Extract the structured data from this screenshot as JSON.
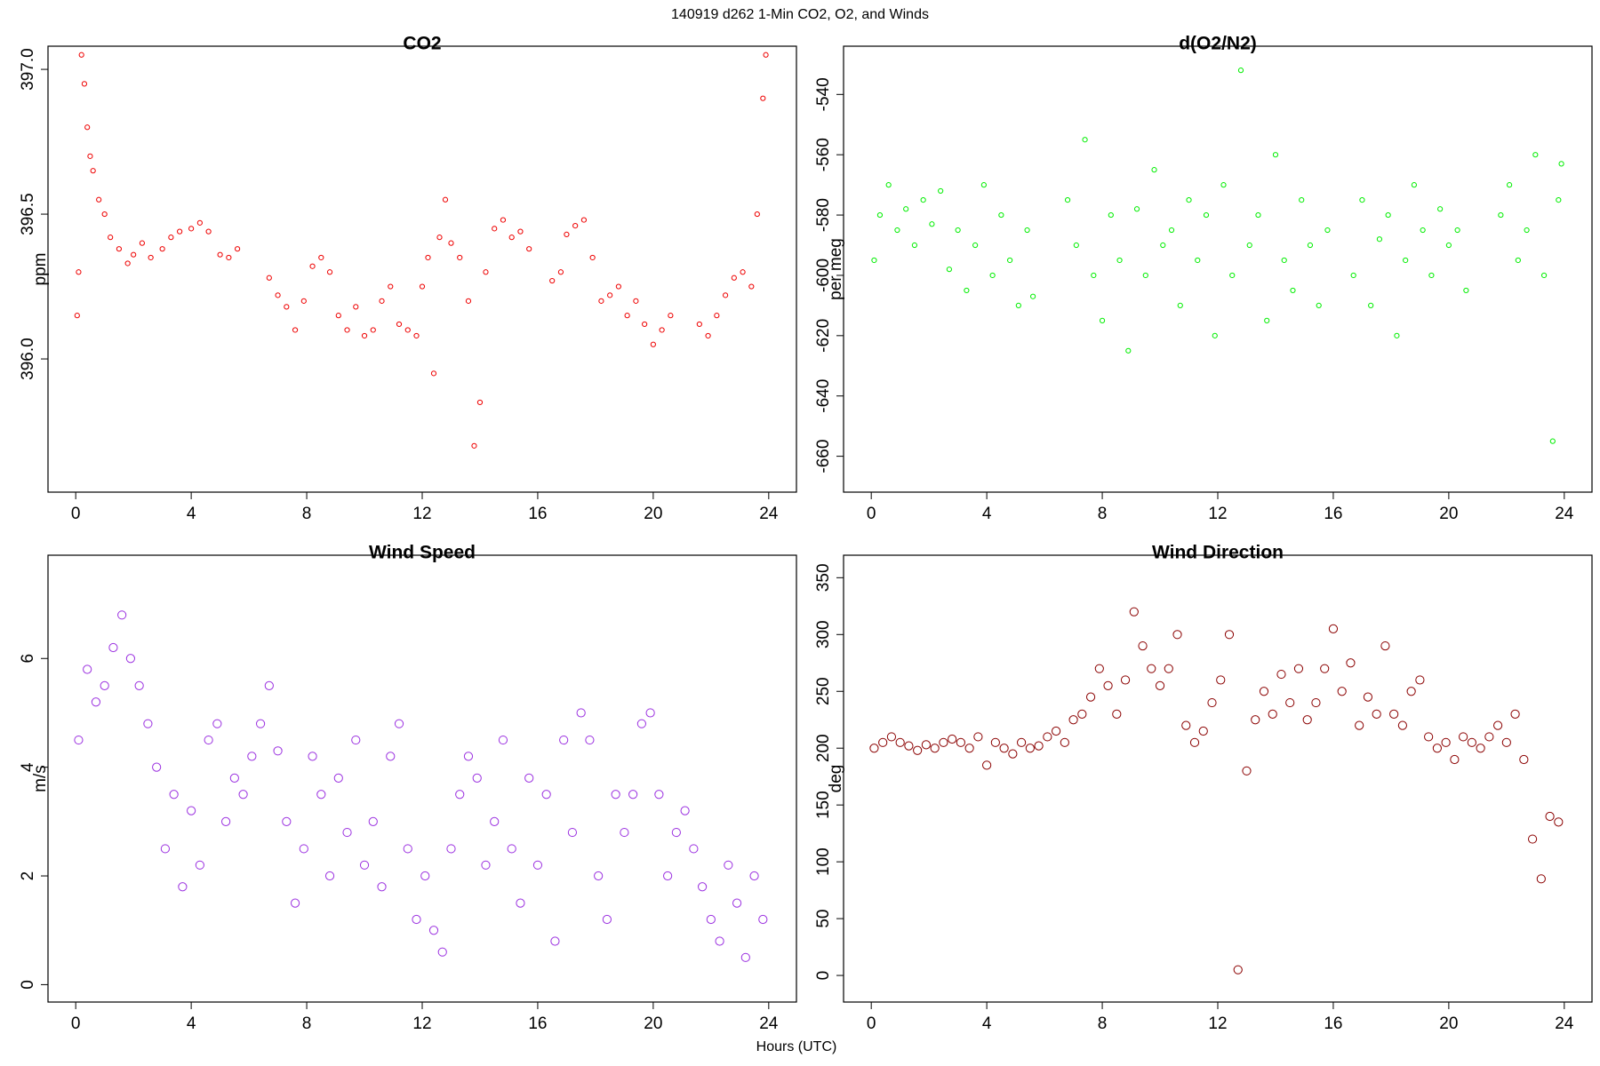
{
  "title": "140919   d262   1-Min CO2, O2, and Winds",
  "xlabel": "Hours (UTC)",
  "chart_data": [
    {
      "type": "scatter",
      "title": "CO2",
      "ylabel": "ppm",
      "color": "#ee0000",
      "xlim": [
        -0.96,
        24.96
      ],
      "ylim": [
        395.54,
        397.08
      ],
      "xticks": [
        0,
        4,
        8,
        12,
        16,
        20,
        24
      ],
      "yticks": [
        {
          "value": 396,
          "label": "396.0"
        },
        396.5,
        {
          "value": 397,
          "label": "397.0"
        }
      ],
      "x": [
        0.05,
        0.1,
        0.2,
        0.3,
        0.4,
        0.5,
        0.6,
        0.8,
        1.0,
        1.2,
        1.5,
        1.8,
        2.0,
        2.3,
        2.6,
        3.0,
        3.3,
        3.6,
        4.0,
        4.3,
        4.6,
        5.0,
        5.3,
        5.6,
        6.7,
        7.0,
        7.3,
        7.6,
        7.9,
        8.2,
        8.5,
        8.8,
        9.1,
        9.4,
        9.7,
        10.0,
        10.3,
        10.6,
        10.9,
        11.2,
        11.5,
        11.8,
        12.0,
        12.2,
        12.4,
        12.6,
        12.8,
        13.0,
        13.3,
        13.6,
        13.8,
        14.0,
        14.2,
        14.5,
        14.8,
        15.1,
        15.4,
        15.7,
        16.5,
        16.8,
        17.0,
        17.3,
        17.6,
        17.9,
        18.2,
        18.5,
        18.8,
        19.1,
        19.4,
        19.7,
        20.0,
        20.3,
        20.6,
        21.6,
        21.9,
        22.2,
        22.5,
        22.8,
        23.1,
        23.4,
        23.6,
        23.8,
        23.9
      ],
      "values": [
        396.15,
        396.3,
        397.05,
        396.95,
        396.8,
        396.7,
        396.65,
        396.55,
        396.5,
        396.42,
        396.38,
        396.33,
        396.36,
        396.4,
        396.35,
        396.38,
        396.42,
        396.44,
        396.45,
        396.47,
        396.44,
        396.36,
        396.35,
        396.38,
        396.28,
        396.22,
        396.18,
        396.1,
        396.2,
        396.32,
        396.35,
        396.3,
        396.15,
        396.1,
        396.18,
        396.08,
        396.1,
        396.2,
        396.25,
        396.12,
        396.1,
        396.08,
        396.25,
        396.35,
        395.95,
        396.42,
        396.55,
        396.4,
        396.35,
        396.2,
        395.7,
        395.85,
        396.3,
        396.45,
        396.48,
        396.42,
        396.44,
        396.38,
        396.27,
        396.3,
        396.43,
        396.46,
        396.48,
        396.35,
        396.2,
        396.22,
        396.25,
        396.15,
        396.2,
        396.12,
        396.05,
        396.1,
        396.15,
        396.12,
        396.08,
        396.15,
        396.22,
        396.28,
        396.3,
        396.25,
        396.5,
        396.9,
        397.05
      ]
    },
    {
      "type": "scatter",
      "title": "d(O2/N2)",
      "ylabel": "per meg",
      "color": "#00ee00",
      "xlim": [
        -0.96,
        24.96
      ],
      "ylim": [
        -671.9,
        -524
      ],
      "xticks": [
        0,
        4,
        8,
        12,
        16,
        20,
        24
      ],
      "yticks": [
        -660,
        -640,
        -620,
        -600,
        -580,
        -560,
        -540
      ],
      "x": [
        0.1,
        0.3,
        0.6,
        0.9,
        1.2,
        1.5,
        1.8,
        2.1,
        2.4,
        2.7,
        3.0,
        3.3,
        3.6,
        3.9,
        4.2,
        4.5,
        4.8,
        5.1,
        5.4,
        5.6,
        6.8,
        7.1,
        7.4,
        7.7,
        8.0,
        8.3,
        8.6,
        8.9,
        9.2,
        9.5,
        9.8,
        10.1,
        10.4,
        10.7,
        11.0,
        11.3,
        11.6,
        11.9,
        12.2,
        12.5,
        12.8,
        13.1,
        13.4,
        13.7,
        14.0,
        14.3,
        14.6,
        14.9,
        15.2,
        15.5,
        15.8,
        16.7,
        17.0,
        17.3,
        17.6,
        17.9,
        18.2,
        18.5,
        18.8,
        19.1,
        19.4,
        19.7,
        20.0,
        20.3,
        20.6,
        21.8,
        22.1,
        22.4,
        22.7,
        23.0,
        23.3,
        23.6,
        23.8,
        23.9
      ],
      "values": [
        -595,
        -580,
        -570,
        -585,
        -578,
        -590,
        -575,
        -583,
        -572,
        -598,
        -585,
        -605,
        -590,
        -570,
        -600,
        -580,
        -595,
        -610,
        -585,
        -607,
        -575,
        -590,
        -555,
        -600,
        -615,
        -580,
        -595,
        -625,
        -578,
        -600,
        -565,
        -590,
        -585,
        -610,
        -575,
        -595,
        -580,
        -620,
        -570,
        -600,
        -532,
        -590,
        -580,
        -615,
        -560,
        -595,
        -605,
        -575,
        -590,
        -610,
        -585,
        -600,
        -575,
        -610,
        -588,
        -580,
        -620,
        -595,
        -570,
        -585,
        -600,
        -578,
        -590,
        -585,
        -605,
        -580,
        -570,
        -595,
        -585,
        -560,
        -600,
        -655,
        -575,
        -563
      ]
    },
    {
      "type": "scatter",
      "title": "Wind Speed",
      "ylabel": "m/s",
      "color": "#9b30e0",
      "xlim": [
        -0.96,
        24.96
      ],
      "ylim": [
        -0.32,
        7.9
      ],
      "xticks": [
        0,
        4,
        8,
        12,
        16,
        20,
        24
      ],
      "yticks": [
        0,
        2,
        4,
        6
      ],
      "x": [
        0.1,
        0.4,
        0.7,
        1.0,
        1.3,
        1.6,
        1.9,
        2.2,
        2.5,
        2.8,
        3.1,
        3.4,
        3.7,
        4.0,
        4.3,
        4.6,
        4.9,
        5.2,
        5.5,
        5.8,
        6.1,
        6.4,
        6.7,
        7.0,
        7.3,
        7.6,
        7.9,
        8.2,
        8.5,
        8.8,
        9.1,
        9.4,
        9.7,
        10.0,
        10.3,
        10.6,
        10.9,
        11.2,
        11.5,
        11.8,
        12.1,
        12.4,
        12.7,
        13.0,
        13.3,
        13.6,
        13.9,
        14.2,
        14.5,
        14.8,
        15.1,
        15.4,
        15.7,
        16.0,
        16.3,
        16.6,
        16.9,
        17.2,
        17.5,
        17.8,
        18.1,
        18.4,
        18.7,
        19.0,
        19.3,
        19.6,
        19.9,
        20.2,
        20.5,
        20.8,
        21.1,
        21.4,
        21.7,
        22.0,
        22.3,
        22.6,
        22.9,
        23.2,
        23.5,
        23.8
      ],
      "values": [
        4.5,
        5.8,
        5.2,
        5.5,
        6.2,
        6.8,
        6.0,
        5.5,
        4.8,
        4.0,
        2.5,
        3.5,
        1.8,
        3.2,
        2.2,
        4.5,
        4.8,
        3.0,
        3.8,
        3.5,
        4.2,
        4.8,
        5.5,
        4.3,
        3.0,
        1.5,
        2.5,
        4.2,
        3.5,
        2.0,
        3.8,
        2.8,
        4.5,
        2.2,
        3.0,
        1.8,
        4.2,
        4.8,
        2.5,
        1.2,
        2.0,
        1.0,
        0.6,
        2.5,
        3.5,
        4.2,
        3.8,
        2.2,
        3.0,
        4.5,
        2.5,
        1.5,
        3.8,
        2.2,
        3.5,
        0.8,
        4.5,
        2.8,
        5.0,
        4.5,
        2.0,
        1.2,
        3.5,
        2.8,
        3.5,
        4.8,
        5.0,
        3.5,
        2.0,
        2.8,
        3.2,
        2.5,
        1.8,
        1.2,
        0.8,
        2.2,
        1.5,
        0.5,
        2.0,
        1.2
      ]
    },
    {
      "type": "scatter",
      "title": "Wind Direction",
      "ylabel": "deg",
      "color": "#8b0000",
      "xlim": [
        -0.96,
        24.96
      ],
      "ylim": [
        -23.4,
        369.8
      ],
      "xticks": [
        0,
        4,
        8,
        12,
        16,
        20,
        24
      ],
      "yticks": [
        0,
        50,
        100,
        150,
        200,
        250,
        300,
        350
      ],
      "x": [
        0.1,
        0.4,
        0.7,
        1.0,
        1.3,
        1.6,
        1.9,
        2.2,
        2.5,
        2.8,
        3.1,
        3.4,
        3.7,
        4.0,
        4.3,
        4.6,
        4.9,
        5.2,
        5.5,
        5.8,
        6.1,
        6.4,
        6.7,
        7.0,
        7.3,
        7.6,
        7.9,
        8.2,
        8.5,
        8.8,
        9.1,
        9.4,
        9.7,
        10.0,
        10.3,
        10.6,
        10.9,
        11.2,
        11.5,
        11.8,
        12.1,
        12.4,
        12.7,
        13.0,
        13.3,
        13.6,
        13.9,
        14.2,
        14.5,
        14.8,
        15.1,
        15.4,
        15.7,
        16.0,
        16.3,
        16.6,
        16.9,
        17.2,
        17.5,
        17.8,
        18.1,
        18.4,
        18.7,
        19.0,
        19.3,
        19.6,
        19.9,
        20.2,
        20.5,
        20.8,
        21.1,
        21.4,
        21.7,
        22.0,
        22.3,
        22.6,
        22.9,
        23.2,
        23.5,
        23.8
      ],
      "values": [
        200,
        205,
        210,
        205,
        202,
        198,
        203,
        200,
        205,
        208,
        205,
        200,
        210,
        185,
        205,
        200,
        195,
        205,
        200,
        202,
        210,
        215,
        205,
        225,
        230,
        245,
        270,
        255,
        230,
        260,
        320,
        290,
        270,
        255,
        270,
        300,
        220,
        205,
        215,
        240,
        260,
        300,
        5,
        180,
        225,
        250,
        230,
        265,
        240,
        270,
        225,
        240,
        270,
        305,
        250,
        275,
        220,
        245,
        230,
        290,
        230,
        220,
        250,
        260,
        210,
        200,
        205,
        190,
        210,
        205,
        200,
        210,
        220,
        205,
        230,
        190,
        120,
        85,
        140,
        135
      ]
    }
  ]
}
